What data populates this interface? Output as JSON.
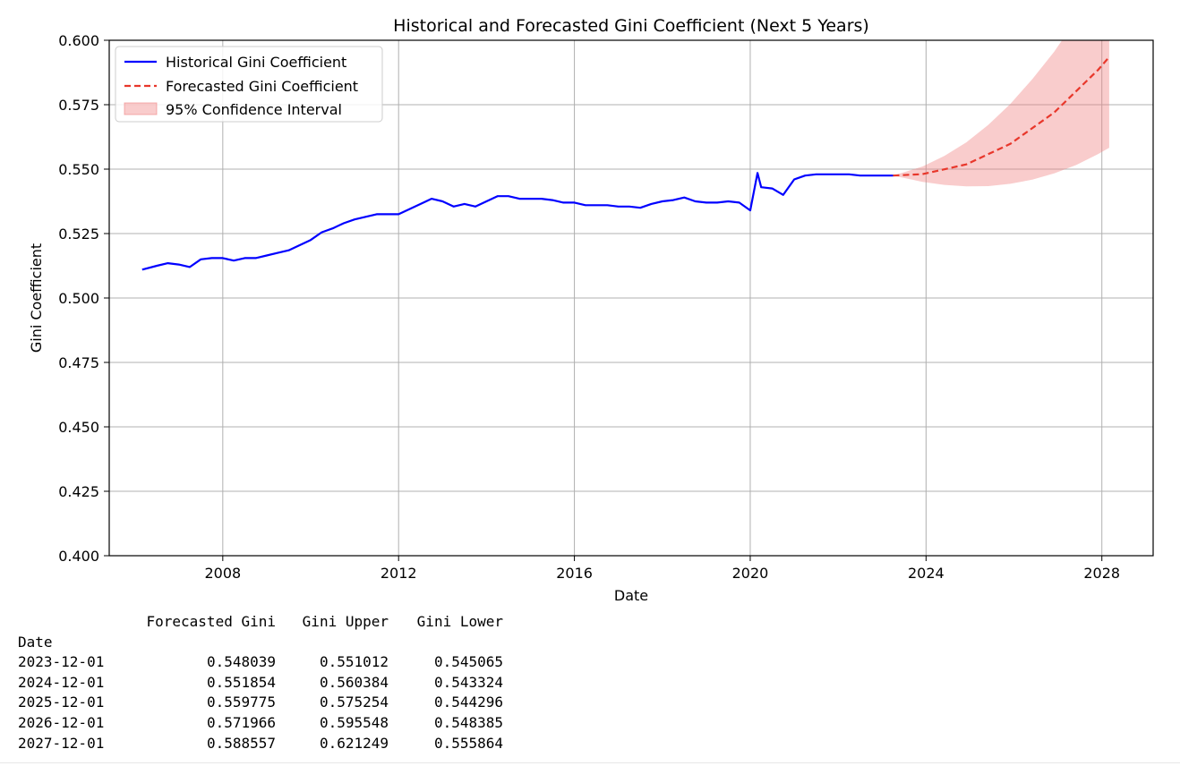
{
  "chart_data": {
    "type": "line",
    "title": "Historical and Forecasted Gini Coefficient (Next 5 Years)",
    "xlabel": "Date",
    "ylabel": "Gini Coefficient",
    "xlim": [
      "2005-06",
      "2029-03"
    ],
    "ylim": [
      0.4,
      0.6
    ],
    "grid": true,
    "legend_position": "top-left",
    "x_ticks": [
      "2008",
      "2012",
      "2016",
      "2020",
      "2024",
      "2028"
    ],
    "y_ticks": [
      "0.400",
      "0.425",
      "0.450",
      "0.475",
      "0.500",
      "0.525",
      "0.550",
      "0.575",
      "0.600"
    ],
    "series": [
      {
        "name": "Historical Gini Coefficient",
        "style": "solid",
        "color": "#0000ff",
        "x": [
          "2006-03",
          "2006-07",
          "2006-10",
          "2007-01",
          "2007-04",
          "2007-07",
          "2007-10",
          "2008-01",
          "2008-04",
          "2008-07",
          "2008-10",
          "2009-01",
          "2009-04",
          "2009-07",
          "2009-10",
          "2010-01",
          "2010-04",
          "2010-07",
          "2010-10",
          "2011-01",
          "2011-04",
          "2011-07",
          "2011-10",
          "2012-01",
          "2012-04",
          "2012-07",
          "2012-10",
          "2013-01",
          "2013-04",
          "2013-07",
          "2013-10",
          "2014-01",
          "2014-04",
          "2014-07",
          "2014-10",
          "2015-01",
          "2015-04",
          "2015-07",
          "2015-10",
          "2016-01",
          "2016-04",
          "2016-07",
          "2016-10",
          "2017-01",
          "2017-04",
          "2017-07",
          "2017-10",
          "2018-01",
          "2018-04",
          "2018-07",
          "2018-10",
          "2019-01",
          "2019-04",
          "2019-07",
          "2019-10",
          "2020-01",
          "2020-03",
          "2020-04",
          "2020-07",
          "2020-10",
          "2021-01",
          "2021-04",
          "2021-07",
          "2021-10",
          "2022-01",
          "2022-04",
          "2022-07",
          "2022-10",
          "2023-01",
          "2023-04"
        ],
        "values": [
          0.511,
          0.5125,
          0.5135,
          0.513,
          0.512,
          0.515,
          0.5155,
          0.5155,
          0.5145,
          0.5155,
          0.5155,
          0.5165,
          0.5175,
          0.5185,
          0.5205,
          0.5225,
          0.5255,
          0.527,
          0.529,
          0.5305,
          0.5315,
          0.5325,
          0.5325,
          0.5325,
          0.5345,
          0.5365,
          0.5385,
          0.5375,
          0.5355,
          0.5365,
          0.5355,
          0.5375,
          0.5395,
          0.5395,
          0.5385,
          0.5385,
          0.5385,
          0.538,
          0.537,
          0.537,
          0.536,
          0.536,
          0.536,
          0.5355,
          0.5355,
          0.535,
          0.5365,
          0.5375,
          0.538,
          0.539,
          0.5375,
          0.537,
          0.537,
          0.5375,
          0.537,
          0.534,
          0.5485,
          0.543,
          0.5425,
          0.54,
          0.546,
          0.5475,
          0.548,
          0.548,
          0.548,
          0.548,
          0.5475,
          0.5475,
          0.5475,
          0.5475
        ]
      },
      {
        "name": "Forecasted Gini Coefficient",
        "style": "dashed",
        "color": "#e8372b",
        "x": [
          "2023-04",
          "2023-12",
          "2024-12",
          "2025-12",
          "2026-12",
          "2027-12",
          "2028-03"
        ],
        "values": [
          0.5475,
          0.548039,
          0.551854,
          0.559775,
          0.571966,
          0.588557,
          0.5935
        ]
      }
    ],
    "band": {
      "name": "95% Confidence Interval",
      "color": "#f08080",
      "x": [
        "2023-04",
        "2023-12",
        "2024-06",
        "2024-12",
        "2025-06",
        "2025-12",
        "2026-06",
        "2026-12",
        "2027-06",
        "2027-12",
        "2028-03"
      ],
      "upper": [
        0.5475,
        0.551012,
        0.5551,
        0.560384,
        0.5672,
        0.575254,
        0.5849,
        0.595548,
        0.6081,
        0.621249,
        0.6285
      ],
      "lower": [
        0.5475,
        0.545065,
        0.5439,
        0.543324,
        0.5434,
        0.544296,
        0.5459,
        0.548385,
        0.5516,
        0.555864,
        0.5583
      ]
    }
  },
  "output_table": {
    "header": [
      "",
      "Forecasted Gini",
      "Gini Upper",
      "Gini Lower"
    ],
    "index_name": "Date",
    "rows": [
      [
        "2023-12-01",
        "0.548039",
        "0.551012",
        "0.545065"
      ],
      [
        "2024-12-01",
        "0.551854",
        "0.560384",
        "0.543324"
      ],
      [
        "2025-12-01",
        "0.559775",
        "0.575254",
        "0.544296"
      ],
      [
        "2026-12-01",
        "0.571966",
        "0.595548",
        "0.548385"
      ],
      [
        "2027-12-01",
        "0.588557",
        "0.621249",
        "0.555864"
      ]
    ]
  }
}
